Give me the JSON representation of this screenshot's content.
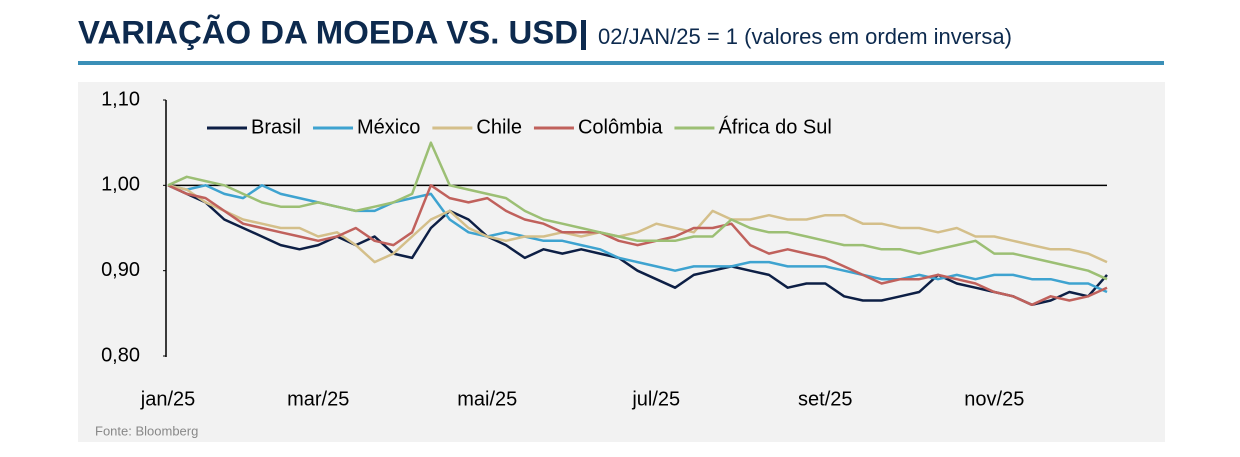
{
  "chart_data": {
    "type": "line",
    "title": "VARIAÇÃO DA MOEDA VS. USD",
    "subtitle": "02/JAN/25 = 1 (valores em ordem inversa)",
    "source": "Fonte: Bloomberg",
    "categories": [
      "jan/25",
      null,
      null,
      null,
      null,
      null,
      null,
      null,
      "mar/25",
      null,
      null,
      null,
      null,
      null,
      null,
      null,
      null,
      "mai/25",
      null,
      null,
      null,
      null,
      null,
      null,
      null,
      null,
      "jul/25",
      null,
      null,
      null,
      null,
      null,
      null,
      null,
      null,
      "set/25",
      null,
      null,
      null,
      null,
      null,
      null,
      null,
      null,
      "nov/25",
      null,
      null,
      null,
      null,
      null,
      null
    ],
    "series": [
      {
        "name": "Brasil",
        "color": "#0d1f45",
        "values": [
          1.0,
          0.99,
          0.98,
          0.96,
          0.95,
          0.94,
          0.93,
          0.925,
          0.93,
          0.94,
          0.93,
          0.94,
          0.92,
          0.915,
          0.95,
          0.97,
          0.96,
          0.94,
          0.93,
          0.915,
          0.925,
          0.92,
          0.925,
          0.92,
          0.915,
          0.9,
          0.89,
          0.88,
          0.895,
          0.9,
          0.905,
          0.9,
          0.895,
          0.88,
          0.885,
          0.885,
          0.87,
          0.865,
          0.865,
          0.87,
          0.875,
          0.895,
          0.885,
          0.88,
          0.875,
          0.87,
          0.86,
          0.865,
          0.875,
          0.87,
          0.895
        ]
      },
      {
        "name": "México",
        "color": "#3ea3d0",
        "values": [
          1.0,
          0.995,
          1.0,
          0.99,
          0.985,
          1.0,
          0.99,
          0.985,
          0.98,
          0.975,
          0.97,
          0.97,
          0.98,
          0.985,
          0.99,
          0.96,
          0.945,
          0.94,
          0.945,
          0.94,
          0.935,
          0.935,
          0.93,
          0.925,
          0.915,
          0.91,
          0.905,
          0.9,
          0.905,
          0.905,
          0.905,
          0.91,
          0.91,
          0.905,
          0.905,
          0.905,
          0.9,
          0.895,
          0.89,
          0.89,
          0.895,
          0.89,
          0.895,
          0.89,
          0.895,
          0.895,
          0.89,
          0.89,
          0.885,
          0.885,
          0.875
        ]
      },
      {
        "name": "Chile",
        "color": "#d4bf8a",
        "values": [
          1.0,
          0.995,
          0.98,
          0.97,
          0.96,
          0.955,
          0.95,
          0.95,
          0.94,
          0.945,
          0.93,
          0.91,
          0.92,
          0.94,
          0.96,
          0.97,
          0.95,
          0.94,
          0.935,
          0.94,
          0.94,
          0.945,
          0.94,
          0.945,
          0.94,
          0.945,
          0.955,
          0.95,
          0.945,
          0.97,
          0.96,
          0.96,
          0.965,
          0.96,
          0.96,
          0.965,
          0.965,
          0.955,
          0.955,
          0.95,
          0.95,
          0.945,
          0.95,
          0.94,
          0.94,
          0.935,
          0.93,
          0.925,
          0.925,
          0.92,
          0.91
        ]
      },
      {
        "name": "Colômbia",
        "color": "#c0615c",
        "values": [
          1.0,
          0.99,
          0.985,
          0.97,
          0.955,
          0.95,
          0.945,
          0.94,
          0.935,
          0.94,
          0.95,
          0.935,
          0.93,
          0.945,
          1.0,
          0.985,
          0.98,
          0.985,
          0.97,
          0.96,
          0.955,
          0.945,
          0.945,
          0.945,
          0.935,
          0.93,
          0.935,
          0.94,
          0.95,
          0.95,
          0.955,
          0.93,
          0.92,
          0.925,
          0.92,
          0.915,
          0.905,
          0.895,
          0.885,
          0.89,
          0.89,
          0.895,
          0.89,
          0.885,
          0.875,
          0.87,
          0.86,
          0.87,
          0.865,
          0.87,
          0.88
        ]
      },
      {
        "name": "África do Sul",
        "color": "#9cbf74",
        "values": [
          1.0,
          1.01,
          1.005,
          1.0,
          0.99,
          0.98,
          0.975,
          0.975,
          0.98,
          0.975,
          0.97,
          0.975,
          0.98,
          0.99,
          1.05,
          1.0,
          0.995,
          0.99,
          0.985,
          0.97,
          0.96,
          0.955,
          0.95,
          0.945,
          0.94,
          0.935,
          0.935,
          0.935,
          0.94,
          0.94,
          0.96,
          0.95,
          0.945,
          0.945,
          0.94,
          0.935,
          0.93,
          0.93,
          0.925,
          0.925,
          0.92,
          0.925,
          0.93,
          0.935,
          0.92,
          0.92,
          0.915,
          0.91,
          0.905,
          0.9,
          0.89
        ]
      }
    ],
    "ylim": [
      0.8,
      1.1
    ],
    "yticks": [
      {
        "value": 0.8,
        "label": "0,80"
      },
      {
        "value": 0.9,
        "label": "0,90"
      },
      {
        "value": 1.0,
        "label": "1,00"
      },
      {
        "value": 1.1,
        "label": "1,10"
      }
    ],
    "hline": 1,
    "grid": false
  }
}
